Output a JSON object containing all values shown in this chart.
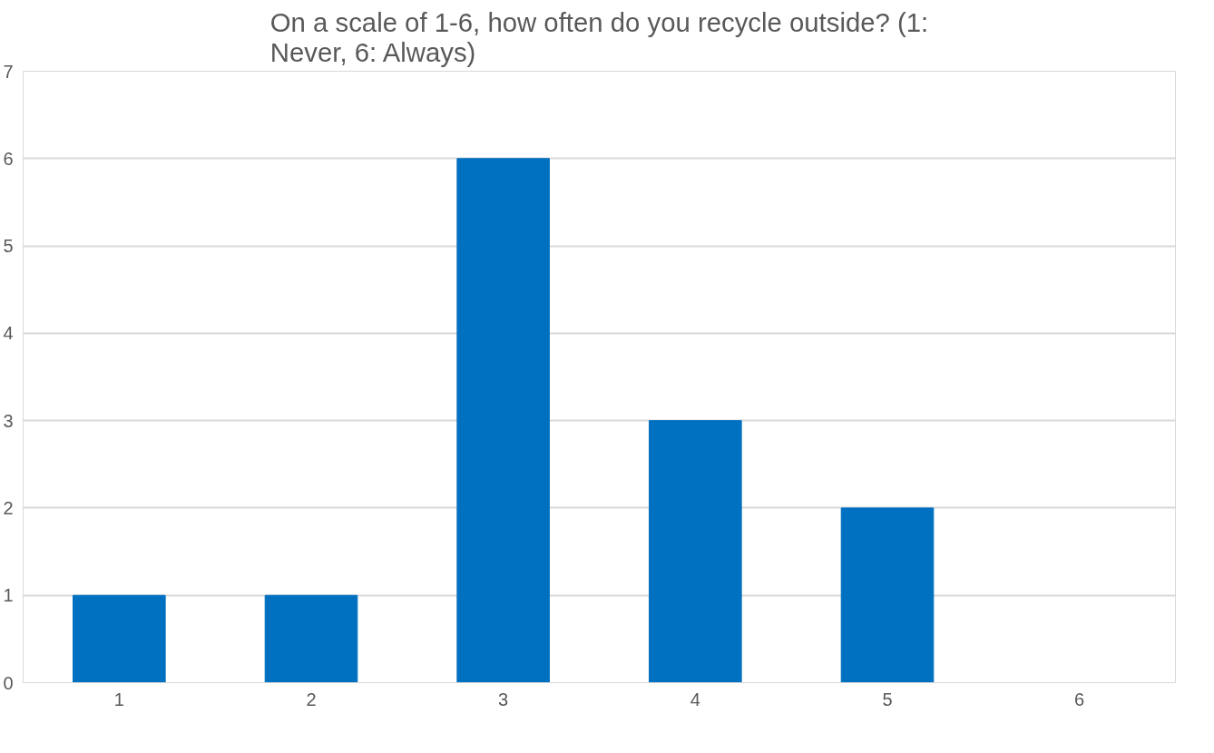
{
  "chart_data": {
    "type": "bar",
    "title": "On a scale of 1-6, how often do you recycle outside? (1: Never, 6: Always)",
    "categories": [
      "1",
      "2",
      "3",
      "4",
      "5",
      "6"
    ],
    "values": [
      1,
      1,
      6,
      3,
      2,
      0
    ],
    "color": "#0070c0",
    "ylim": [
      0,
      7
    ],
    "yticks": [
      0,
      1,
      2,
      3,
      4,
      5,
      6,
      7
    ],
    "grid": "y"
  }
}
